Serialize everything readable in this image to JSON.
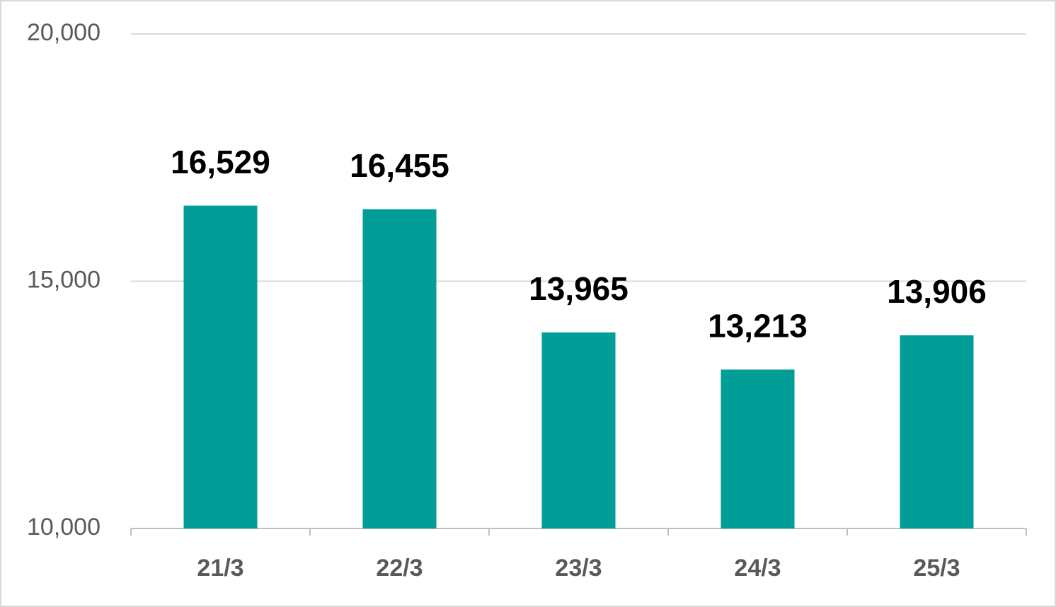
{
  "chart_data": {
    "type": "bar",
    "categories": [
      "21/3",
      "22/3",
      "23/3",
      "24/3",
      "25/3"
    ],
    "values": [
      16529,
      16455,
      13965,
      13213,
      13906
    ],
    "value_labels": [
      "16,529",
      "16,455",
      "13,965",
      "13,213",
      "13,906"
    ],
    "color": "#009e96",
    "ylim": [
      10000,
      20000
    ],
    "yticks": [
      {
        "value": 10000,
        "label": "10,000"
      },
      {
        "value": 15000,
        "label": "15,000"
      },
      {
        "value": 20000,
        "label": "20,000"
      }
    ],
    "grid": true
  }
}
